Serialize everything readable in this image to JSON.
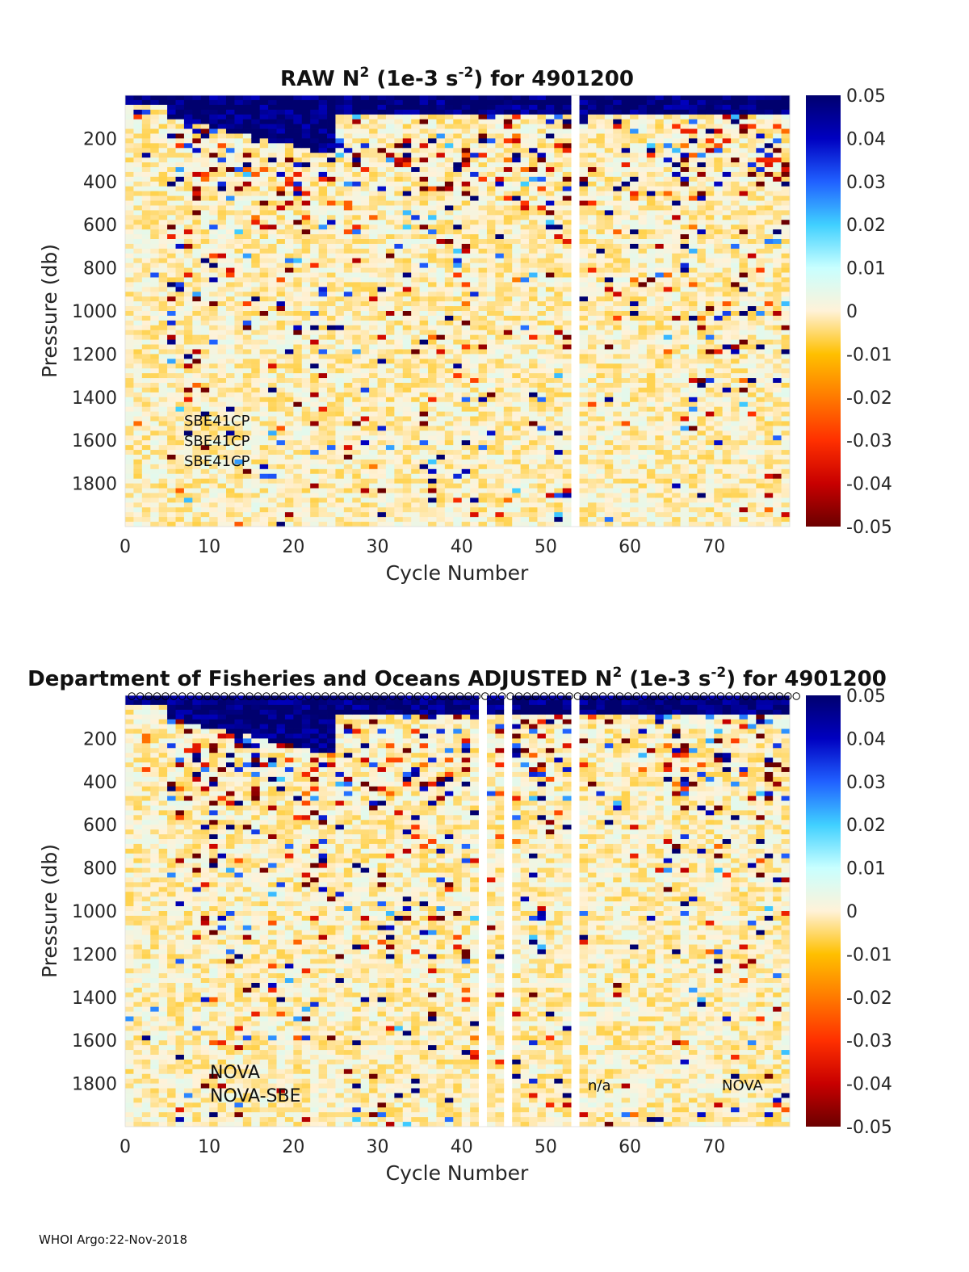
{
  "colorbar": {
    "min": -0.05,
    "max": 0.05,
    "ticks": [
      "0.05",
      "0.04",
      "0.03",
      "0.02",
      "0.01",
      "0",
      "-0.01",
      "-0.02",
      "-0.03",
      "-0.04",
      "-0.05"
    ],
    "colormap": [
      "#6b0000",
      "#c80000",
      "#ff3000",
      "#ff7a00",
      "#ffc000",
      "#fff2d8",
      "#c8ffff",
      "#40d0ff",
      "#2060ff",
      "#0000c0",
      "#00006e"
    ]
  },
  "footer": "WHOI Argo:22-Nov-2018",
  "chart_data": [
    {
      "type": "heatmap",
      "title_pre": "RAW N",
      "title_sup1": "2",
      "title_mid": " (1e-3 s",
      "title_sup2": "-2",
      "title_post": ") for 4901200",
      "xlabel": "Cycle Number",
      "ylabel": "Pressure (db)",
      "xlim": [
        0,
        79
      ],
      "ylim": [
        0,
        2000
      ],
      "y_reversed": true,
      "xticks": [
        "0",
        "10",
        "20",
        "30",
        "40",
        "50",
        "60",
        "70"
      ],
      "yticks": [
        "200",
        "400",
        "600",
        "800",
        "1000",
        "1200",
        "1400",
        "1600",
        "1800"
      ],
      "missing_cycles": [
        53
      ],
      "annotations": [
        "SBE41CP",
        "SBE41CP",
        "SBE41CP"
      ]
    },
    {
      "type": "heatmap",
      "title_pre": "Department of Fisheries and Oceans  ADJUSTED N",
      "title_sup1": "2",
      "title_mid": " (1e-3 s",
      "title_sup2": "-2",
      "title_post": ") for 4901200",
      "xlabel": "Cycle Number",
      "ylabel": "Pressure (db)",
      "xlim": [
        0,
        79
      ],
      "ylim": [
        0,
        2000
      ],
      "y_reversed": true,
      "xticks": [
        "0",
        "10",
        "20",
        "30",
        "40",
        "50",
        "60",
        "70"
      ],
      "yticks": [
        "200",
        "400",
        "600",
        "800",
        "1000",
        "1200",
        "1400",
        "1600",
        "1800"
      ],
      "missing_cycles": [
        42,
        45,
        53
      ],
      "annotations": [
        "NOVA",
        "NOVA-SBE",
        "n/a",
        "NOVA"
      ]
    }
  ]
}
